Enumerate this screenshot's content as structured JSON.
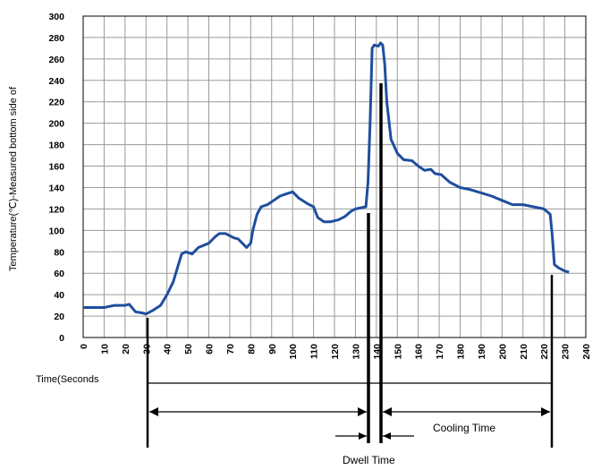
{
  "chart_data": {
    "type": "line",
    "y_label": "Temperature(℃)-Measured bottom side of",
    "annotations": [
      "Time(Seconds",
      "Cooling Time",
      "Dwell Time"
    ],
    "x": [
      0,
      10,
      15,
      20,
      22,
      25,
      28,
      30,
      33,
      37,
      40,
      43,
      45,
      47,
      49,
      52,
      55,
      60,
      63,
      65,
      68,
      72,
      74,
      76,
      78,
      80,
      81,
      83,
      85,
      88,
      91,
      94,
      97,
      100,
      101,
      103,
      107,
      110,
      112,
      115,
      118,
      122,
      125,
      128,
      130,
      135,
      136,
      137,
      138,
      139,
      141,
      142,
      143,
      144,
      145,
      147,
      150,
      153,
      157,
      160,
      163,
      166,
      168,
      171,
      175,
      180,
      185,
      190,
      195,
      200,
      205,
      210,
      215,
      220,
      223,
      224,
      225,
      227,
      230,
      232
    ],
    "series": [
      {
        "color": "#1f4e9e",
        "values": [
          28,
          28,
          30,
          30,
          31,
          24,
          23,
          22,
          25,
          30,
          40,
          52,
          65,
          78,
          80,
          78,
          84,
          88,
          94,
          97,
          97,
          93,
          92,
          88,
          84,
          88,
          100,
          115,
          122,
          124,
          128,
          132,
          134,
          136,
          134,
          130,
          125,
          122,
          112,
          108,
          108,
          110,
          113,
          118,
          120,
          122,
          145,
          200,
          270,
          273,
          272,
          275,
          273,
          255,
          220,
          185,
          172,
          166,
          165,
          160,
          156,
          157,
          153,
          152,
          145,
          140,
          138,
          135,
          132,
          128,
          124,
          124,
          122,
          120,
          115,
          95,
          68,
          65,
          62,
          61
        ]
      }
    ],
    "xlim": [
      0,
      240
    ],
    "ylim": [
      0,
      300
    ],
    "xticks": [
      0,
      10,
      20,
      30,
      40,
      50,
      60,
      70,
      80,
      90,
      100,
      110,
      120,
      130,
      140,
      150,
      160,
      170,
      180,
      190,
      200,
      210,
      220,
      230,
      240
    ],
    "yticks": [
      0,
      20,
      40,
      60,
      80,
      100,
      120,
      140,
      160,
      180,
      200,
      220,
      240,
      260,
      280,
      300
    ],
    "grid": true
  }
}
